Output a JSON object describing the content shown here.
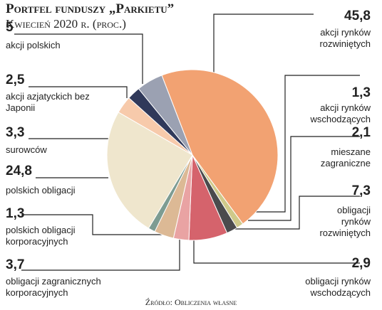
{
  "chart_data": {
    "type": "pie",
    "title": "Portfel funduszy „Parkietu”",
    "subtitle": "Kwiecień 2020 r. (proc.)",
    "source": "Źródło: Obliczenia własne",
    "categories": [
      "akcji rynków rozwiniętych",
      "akcji rynków wschodzących",
      "mieszane zagraniczne",
      "obligacji rynków rozwiniętych",
      "obligacji rynków wschodzących",
      "obligacji zagranicznych korporacyjnych",
      "polskich obligacji korporacyjnych",
      "polskich obligacji",
      "surowców",
      "akcji azjatyckich bez Japonii",
      "akcji polskich"
    ],
    "values": [
      45.8,
      1.3,
      2.1,
      7.3,
      2.9,
      3.7,
      1.3,
      24.8,
      3.3,
      2.5,
      5
    ],
    "value_labels": [
      "45,8",
      "1,3",
      "2,1",
      "7,3",
      "2,9",
      "3,7",
      "1,3",
      "24,8",
      "3,3",
      "2,5",
      "5"
    ],
    "colors": [
      "#f2a272",
      "#cfc98a",
      "#4b4b4d",
      "#d5636c",
      "#e9a3a3",
      "#dcb995",
      "#7d9c92",
      "#efe6cd",
      "#f7caab",
      "#30395a",
      "#9ba1b2"
    ]
  }
}
